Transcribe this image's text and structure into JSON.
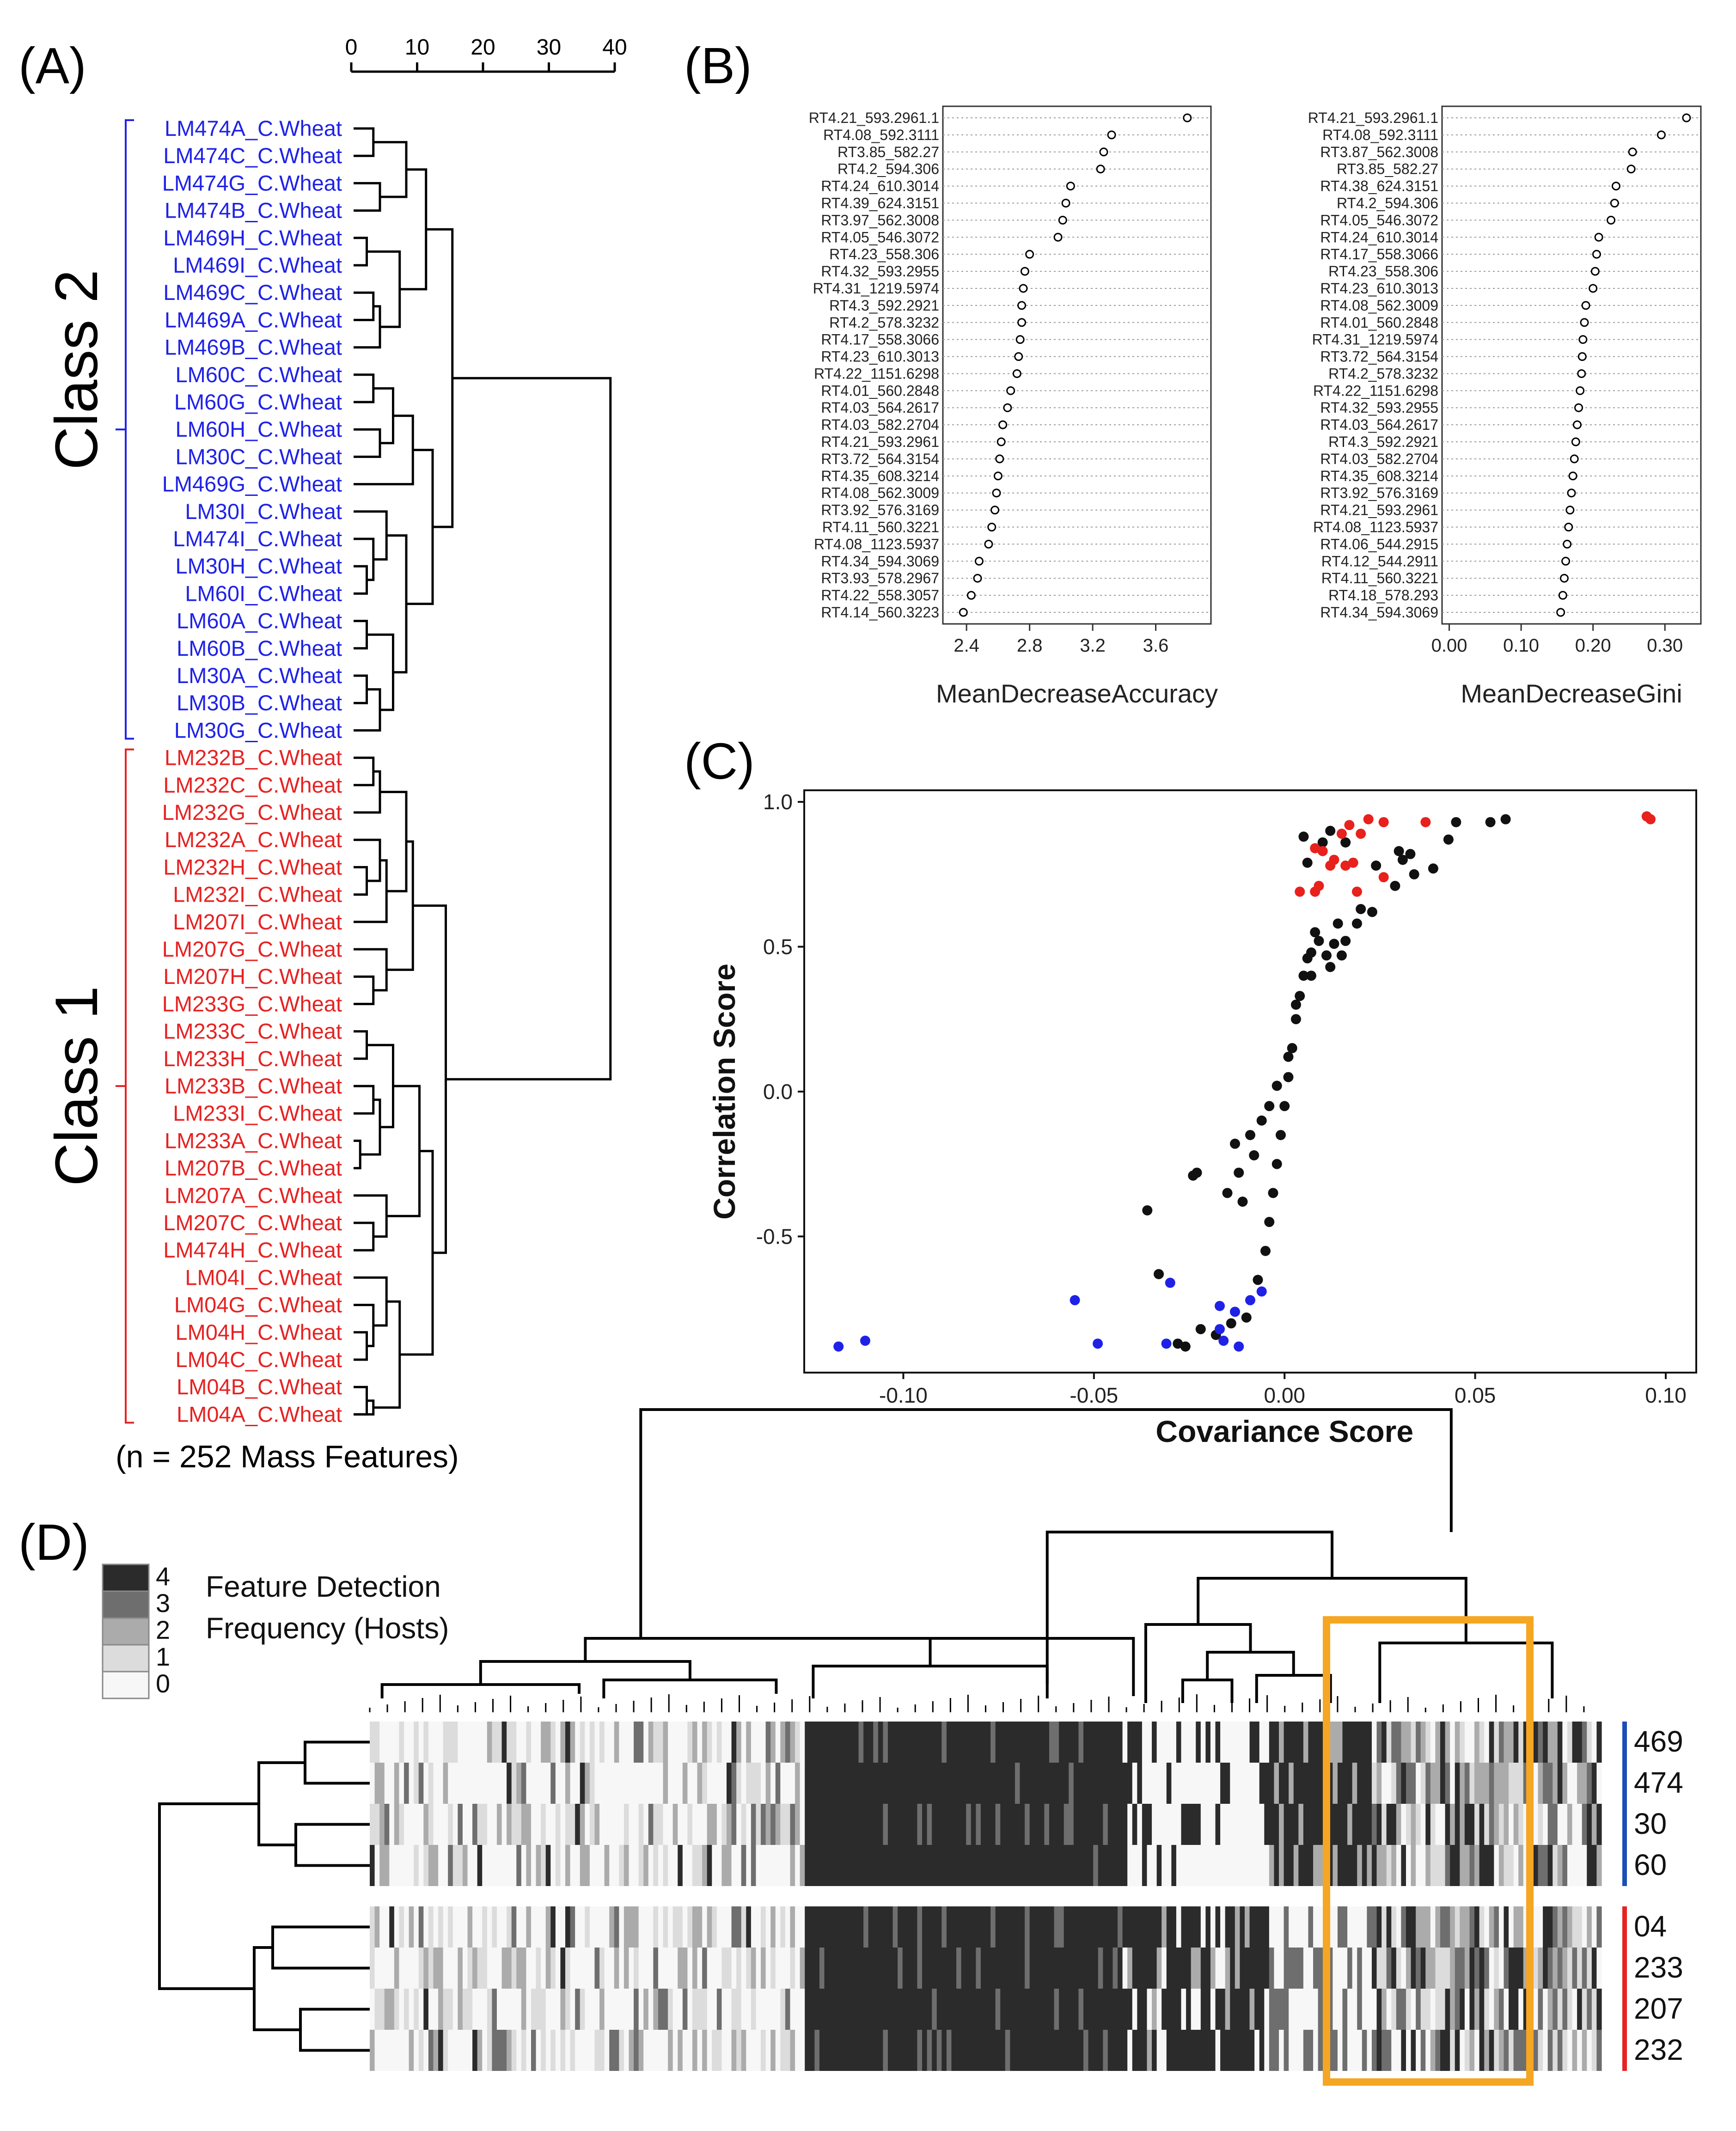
{
  "panels": {
    "A": {
      "tag": "(A)",
      "scale_ticks": [
        "0",
        "10",
        "20",
        "30",
        "40"
      ],
      "class2_label": "Class 2",
      "class1_label": "Class 1",
      "footnote": "(n = 252 Mass Features)",
      "colors": {
        "class2": "#1f22e6",
        "class1": "#e62222",
        "branch": "#000000"
      },
      "class2_samples": [
        "LM474A_C.Wheat",
        "LM474C_C.Wheat",
        "LM474G_C.Wheat",
        "LM474B_C.Wheat",
        "LM469H_C.Wheat",
        "LM469I_C.Wheat",
        "LM469C_C.Wheat",
        "LM469A_C.Wheat",
        "LM469B_C.Wheat",
        "LM60C_C.Wheat",
        "LM60G_C.Wheat",
        "LM60H_C.Wheat",
        "LM30C_C.Wheat",
        "LM469G_C.Wheat",
        "LM30I_C.Wheat",
        "LM474I_C.Wheat",
        "LM30H_C.Wheat",
        "LM60I_C.Wheat",
        "LM60A_C.Wheat",
        "LM60B_C.Wheat",
        "LM30A_C.Wheat",
        "LM30B_C.Wheat",
        "LM30G_C.Wheat"
      ],
      "class1_samples": [
        "LM232B_C.Wheat",
        "LM232C_C.Wheat",
        "LM232G_C.Wheat",
        "LM232A_C.Wheat",
        "LM232H_C.Wheat",
        "LM232I_C.Wheat",
        "LM207I_C.Wheat",
        "LM207G_C.Wheat",
        "LM207H_C.Wheat",
        "LM233G_C.Wheat",
        "LM233C_C.Wheat",
        "LM233H_C.Wheat",
        "LM233B_C.Wheat",
        "LM233I_C.Wheat",
        "LM233A_C.Wheat",
        "LM207B_C.Wheat",
        "LM207A_C.Wheat",
        "LM207C_C.Wheat",
        "LM474H_C.Wheat",
        "LM04I_C.Wheat",
        "LM04G_C.Wheat",
        "LM04H_C.Wheat",
        "LM04C_C.Wheat",
        "LM04B_C.Wheat",
        "LM04A_C.Wheat"
      ]
    },
    "B": {
      "tag": "(B)"
    },
    "C": {
      "tag": "(C)"
    },
    "D": {
      "tag": "(D)"
    }
  },
  "chart_data": [
    {
      "type": "dendrogram",
      "panel": "A",
      "scale_range": [
        0,
        40
      ],
      "scale_ticks": [
        0,
        10,
        20,
        30,
        40
      ],
      "leaves": 48,
      "top_merge_height": 39
    },
    {
      "type": "scatter",
      "panel": "B-left",
      "xlabel": "MeanDecreaseAccuracy",
      "xlim": [
        2.25,
        3.95
      ],
      "xticks": [
        "2.4",
        "2.8",
        "3.2",
        "3.6"
      ],
      "features": [
        "RT4.21_593.2961.1",
        "RT4.08_592.3111",
        "RT3.85_582.27",
        "RT4.2_594.306",
        "RT4.24_610.3014",
        "RT4.39_624.3151",
        "RT3.97_562.3008",
        "RT4.05_546.3072",
        "RT4.23_558.306",
        "RT4.32_593.2955",
        "RT4.31_1219.5974",
        "RT4.3_592.2921",
        "RT4.2_578.3232",
        "RT4.17_558.3066",
        "RT4.23_610.3013",
        "RT4.22_1151.6298",
        "RT4.01_560.2848",
        "RT4.03_564.2617",
        "RT4.03_582.2704",
        "RT4.21_593.2961",
        "RT3.72_564.3154",
        "RT4.35_608.3214",
        "RT4.08_562.3009",
        "RT3.92_576.3169",
        "RT4.11_560.3221",
        "RT4.08_1123.5937",
        "RT4.34_594.3069",
        "RT3.93_578.2967",
        "RT4.22_558.3057",
        "RT4.14_560.3223"
      ],
      "values": [
        3.8,
        3.32,
        3.27,
        3.25,
        3.06,
        3.03,
        3.01,
        2.98,
        2.8,
        2.77,
        2.76,
        2.75,
        2.75,
        2.74,
        2.73,
        2.72,
        2.68,
        2.66,
        2.63,
        2.62,
        2.61,
        2.6,
        2.59,
        2.58,
        2.56,
        2.54,
        2.48,
        2.47,
        2.43,
        2.38
      ]
    },
    {
      "type": "scatter",
      "panel": "B-right",
      "xlabel": "MeanDecreaseGini",
      "xlim": [
        -0.01,
        0.35
      ],
      "xticks": [
        "0.00",
        "0.10",
        "0.20",
        "0.30"
      ],
      "features": [
        "RT4.21_593.2961.1",
        "RT4.08_592.3111",
        "RT3.87_562.3008",
        "RT3.85_582.27",
        "RT4.38_624.3151",
        "RT4.2_594.306",
        "RT4.05_546.3072",
        "RT4.24_610.3014",
        "RT4.17_558.3066",
        "RT4.23_558.306",
        "RT4.23_610.3013",
        "RT4.08_562.3009",
        "RT4.01_560.2848",
        "RT4.31_1219.5974",
        "RT3.72_564.3154",
        "RT4.2_578.3232",
        "RT4.22_1151.6298",
        "RT4.32_593.2955",
        "RT4.03_564.2617",
        "RT4.3_592.2921",
        "RT4.03_582.2704",
        "RT4.35_608.3214",
        "RT3.92_576.3169",
        "RT4.21_593.2961",
        "RT4.08_1123.5937",
        "RT4.06_544.2915",
        "RT4.12_544.2911",
        "RT4.11_560.3221",
        "RT4.18_578.293",
        "RT4.34_594.3069"
      ],
      "values": [
        0.33,
        0.295,
        0.255,
        0.253,
        0.232,
        0.23,
        0.225,
        0.208,
        0.205,
        0.203,
        0.2,
        0.19,
        0.188,
        0.186,
        0.185,
        0.184,
        0.182,
        0.18,
        0.178,
        0.176,
        0.174,
        0.172,
        0.17,
        0.168,
        0.166,
        0.164,
        0.162,
        0.16,
        0.158,
        0.155
      ]
    },
    {
      "type": "scatter",
      "panel": "C",
      "xlabel": "Covariance Score",
      "ylabel": "Correlation Score",
      "xlim": [
        -0.126,
        0.108
      ],
      "ylim": [
        -0.97,
        1.04
      ],
      "xticks": [
        "-0.10",
        "-0.05",
        "0.00",
        "0.05",
        "0.10"
      ],
      "yticks": [
        "-0.5",
        "0.0",
        "0.5",
        "1.0"
      ],
      "series": [
        {
          "name": "class1-marker",
          "color": "#e8211c",
          "points": [
            [
              0.095,
              0.95
            ],
            [
              0.096,
              0.94
            ],
            [
              0.037,
              0.93
            ],
            [
              0.026,
              0.93
            ],
            [
              0.017,
              0.92
            ],
            [
              0.022,
              0.94
            ],
            [
              0.015,
              0.89
            ],
            [
              0.02,
              0.89
            ],
            [
              0.008,
              0.84
            ],
            [
              0.01,
              0.83
            ],
            [
              0.012,
              0.78
            ],
            [
              0.013,
              0.8
            ],
            [
              0.016,
              0.78
            ],
            [
              0.018,
              0.79
            ],
            [
              0.026,
              0.74
            ],
            [
              0.009,
              0.71
            ],
            [
              0.004,
              0.69
            ],
            [
              0.008,
              0.69
            ],
            [
              0.019,
              0.69
            ]
          ]
        },
        {
          "name": "class2-marker",
          "color": "#1f22e6",
          "points": [
            [
              -0.117,
              -0.88
            ],
            [
              -0.11,
              -0.86
            ],
            [
              -0.055,
              -0.72
            ],
            [
              -0.049,
              -0.87
            ],
            [
              -0.031,
              -0.87
            ],
            [
              -0.03,
              -0.66
            ],
            [
              -0.017,
              -0.74
            ],
            [
              -0.017,
              -0.82
            ],
            [
              -0.016,
              -0.86
            ],
            [
              -0.013,
              -0.76
            ],
            [
              -0.012,
              -0.88
            ],
            [
              -0.009,
              -0.72
            ],
            [
              -0.006,
              -0.69
            ]
          ]
        },
        {
          "name": "other",
          "color": "#111111",
          "points": [
            [
              0.058,
              0.94
            ],
            [
              0.054,
              0.93
            ],
            [
              0.045,
              0.93
            ],
            [
              0.043,
              0.87
            ],
            [
              0.039,
              0.77
            ],
            [
              0.034,
              0.75
            ],
            [
              0.031,
              0.8
            ],
            [
              0.03,
              0.83
            ],
            [
              0.029,
              0.71
            ],
            [
              0.023,
              0.62
            ],
            [
              0.019,
              0.58
            ],
            [
              0.016,
              0.52
            ],
            [
              0.014,
              0.58
            ],
            [
              0.013,
              0.51
            ],
            [
              0.011,
              0.47
            ],
            [
              0.008,
              0.55
            ],
            [
              0.007,
              0.4
            ],
            [
              0.006,
              0.46
            ],
            [
              0.005,
              0.88
            ],
            [
              0.004,
              0.33
            ],
            [
              0.003,
              0.25
            ],
            [
              0.002,
              0.15
            ],
            [
              0.001,
              0.05
            ],
            [
              0.0,
              -0.05
            ],
            [
              -0.001,
              -0.15
            ],
            [
              -0.002,
              -0.25
            ],
            [
              -0.003,
              -0.35
            ],
            [
              -0.004,
              -0.45
            ],
            [
              -0.005,
              -0.55
            ],
            [
              -0.007,
              -0.65
            ],
            [
              -0.01,
              -0.78
            ],
            [
              -0.014,
              -0.8
            ],
            [
              -0.018,
              -0.84
            ],
            [
              -0.022,
              -0.82
            ],
            [
              -0.026,
              -0.88
            ],
            [
              -0.028,
              -0.87
            ],
            [
              -0.033,
              -0.63
            ],
            [
              -0.036,
              -0.41
            ],
            [
              -0.024,
              -0.29
            ],
            [
              -0.023,
              -0.28
            ],
            [
              -0.012,
              -0.28
            ],
            [
              -0.013,
              -0.18
            ],
            [
              -0.011,
              -0.38
            ],
            [
              -0.015,
              -0.35
            ],
            [
              -0.009,
              -0.15
            ],
            [
              -0.008,
              -0.22
            ],
            [
              -0.006,
              -0.1
            ],
            [
              -0.004,
              -0.05
            ],
            [
              -0.002,
              0.02
            ],
            [
              0.001,
              0.12
            ],
            [
              0.003,
              0.3
            ],
            [
              0.005,
              0.4
            ],
            [
              0.007,
              0.48
            ],
            [
              0.009,
              0.52
            ],
            [
              0.012,
              0.43
            ],
            [
              0.015,
              0.47
            ],
            [
              0.02,
              0.63
            ],
            [
              0.024,
              0.78
            ],
            [
              0.033,
              0.82
            ],
            [
              0.006,
              0.79
            ],
            [
              0.01,
              0.86
            ],
            [
              0.012,
              0.9
            ],
            [
              0.016,
              0.86
            ]
          ]
        }
      ]
    },
    {
      "type": "heatmap",
      "panel": "D",
      "legend_title_line1": "Feature Detection",
      "legend_title_line2": "Frequency (Hosts)",
      "legend_levels": [
        "4",
        "3",
        "2",
        "1",
        "0"
      ],
      "legend_colors": [
        "#2b2b2b",
        "#6e6e6e",
        "#ababab",
        "#dcdcdc",
        "#f7f7f7"
      ],
      "rows": [
        "469",
        "474",
        "30",
        "60",
        "04",
        "233",
        "207",
        "232"
      ],
      "groups": [
        {
          "name": "class2",
          "rows": [
            "469",
            "474",
            "30",
            "60"
          ],
          "color": "#1e4db8"
        },
        {
          "name": "class1",
          "rows": [
            "04",
            "233",
            "207",
            "232"
          ],
          "color": "#e62222"
        }
      ],
      "n_features": 252,
      "highlight_color": "#f5a623"
    }
  ]
}
